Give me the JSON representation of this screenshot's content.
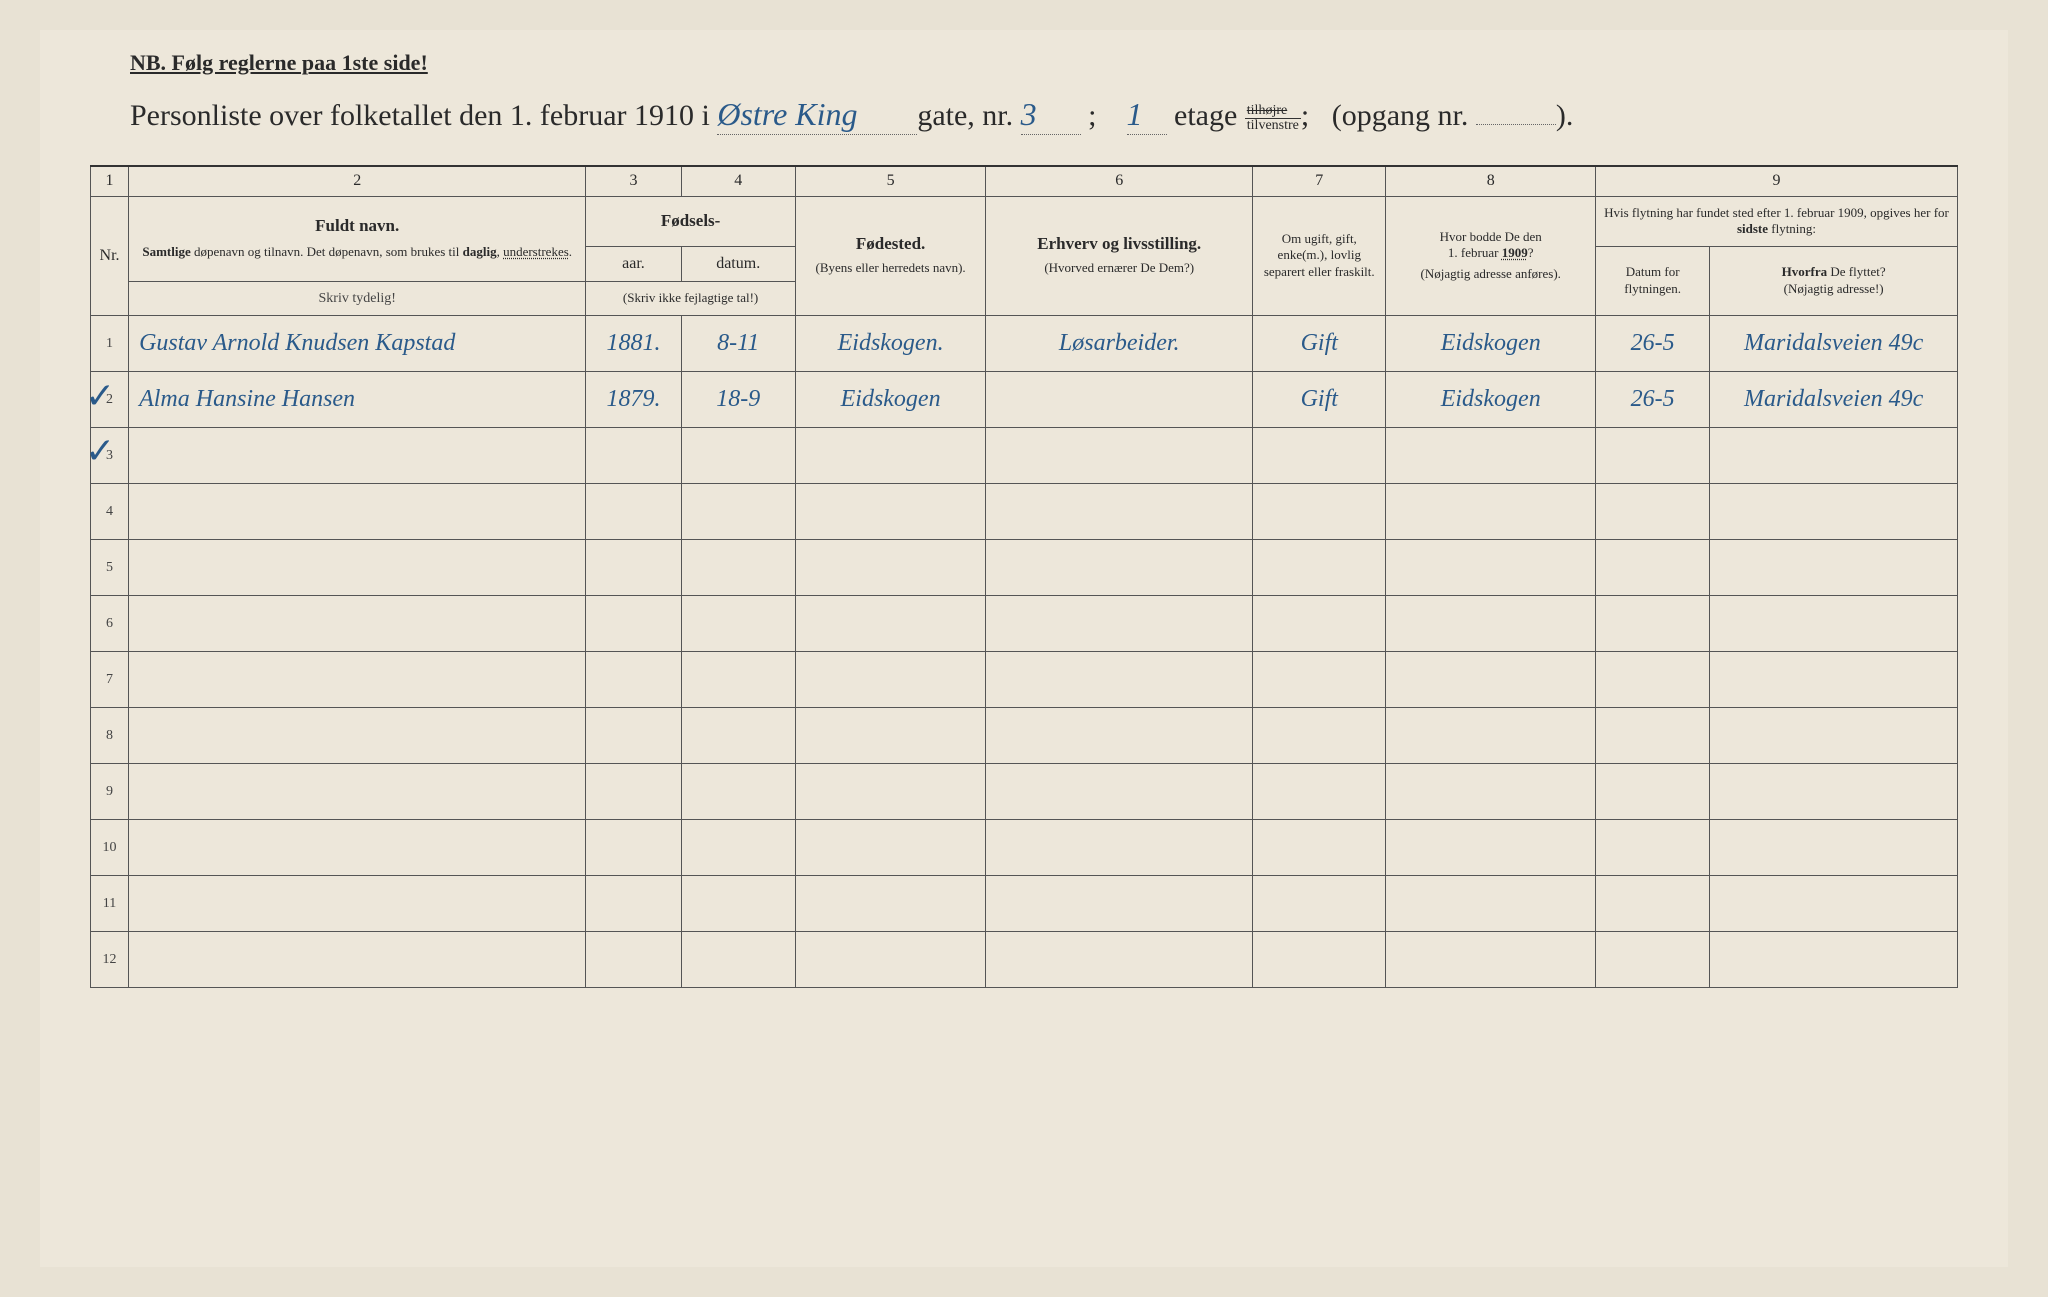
{
  "nb_text": "NB. Følg reglerne paa 1ste side!",
  "title": {
    "prefix": "Personliste over folketallet den 1. februar 1910 i",
    "street_hw": "Østre King",
    "gate_label": "gate, nr.",
    "street_nr_hw": "3",
    "semicolon": ";",
    "etage_hw": "1",
    "etage_label": "etage",
    "hojre": "tilhøjre",
    "venstre": "tilvenstre",
    "semicolon2": ";",
    "opgang": "(opgang nr.",
    "opgang_val": "",
    "close": ")."
  },
  "col_nums": [
    "1",
    "2",
    "3",
    "4",
    "5",
    "6",
    "7",
    "8",
    "9"
  ],
  "headers": {
    "nr": "Nr.",
    "fuldt_navn": "Fuldt navn.",
    "fuldt_sub": "Samtlige døpenavn og tilnavn. Det døpenavn, som brukes til daglig, understrekes.",
    "fodsels": "Fødsels-",
    "aar": "aar.",
    "datum": "datum.",
    "skriv_ikke": "(Skriv ikke fejlagtige tal!)",
    "fodested": "Fødested.",
    "fodested_sub": "(Byens eller herredets navn).",
    "erhverv": "Erhverv og livsstilling.",
    "erhverv_sub": "(Hvorved ernærer De Dem?)",
    "om_ugift": "Om ugift, gift, enke(m.), lovlig separert eller fraskilt.",
    "hvor_bodde": "Hvor bodde De den 1. februar 1909?",
    "hvor_bodde_sub": "(Nøjagtig adresse anføres).",
    "hvis_flytning": "Hvis flytning har fundet sted efter 1. februar 1909, opgives her for sidste flytning:",
    "datum_flyt": "Datum for flytningen.",
    "hvorfra": "Hvorfra De flyttet?",
    "hvorfra_sub": "(Nøjagtig adresse!)"
  },
  "skriv_tydelig": "Skriv tydelig!",
  "rows": [
    {
      "nr": "1",
      "name": "Gustav Arnold Knudsen Kapstad",
      "year": "1881.",
      "date": "8-11",
      "birthplace": "Eidskogen.",
      "occupation": "Løsarbeider.",
      "marital": "Gift",
      "address1909": "Eidskogen",
      "movedate": "26-5",
      "movefrom": "Maridalsveien 49c"
    },
    {
      "nr": "2",
      "name": "Alma Hansine Hansen",
      "year": "1879.",
      "date": "18-9",
      "birthplace": "Eidskogen",
      "occupation": "",
      "marital": "Gift",
      "address1909": "Eidskogen",
      "movedate": "26-5",
      "movefrom": "Maridalsveien 49c"
    },
    {
      "nr": "3"
    },
    {
      "nr": "4"
    },
    {
      "nr": "5"
    },
    {
      "nr": "6"
    },
    {
      "nr": "7"
    },
    {
      "nr": "8"
    },
    {
      "nr": "9"
    },
    {
      "nr": "10"
    },
    {
      "nr": "11"
    },
    {
      "nr": "12"
    }
  ],
  "colors": {
    "paper": "#ede7da",
    "ink": "#2a2a2a",
    "handwriting": "#2a5a8a",
    "border": "#555"
  }
}
